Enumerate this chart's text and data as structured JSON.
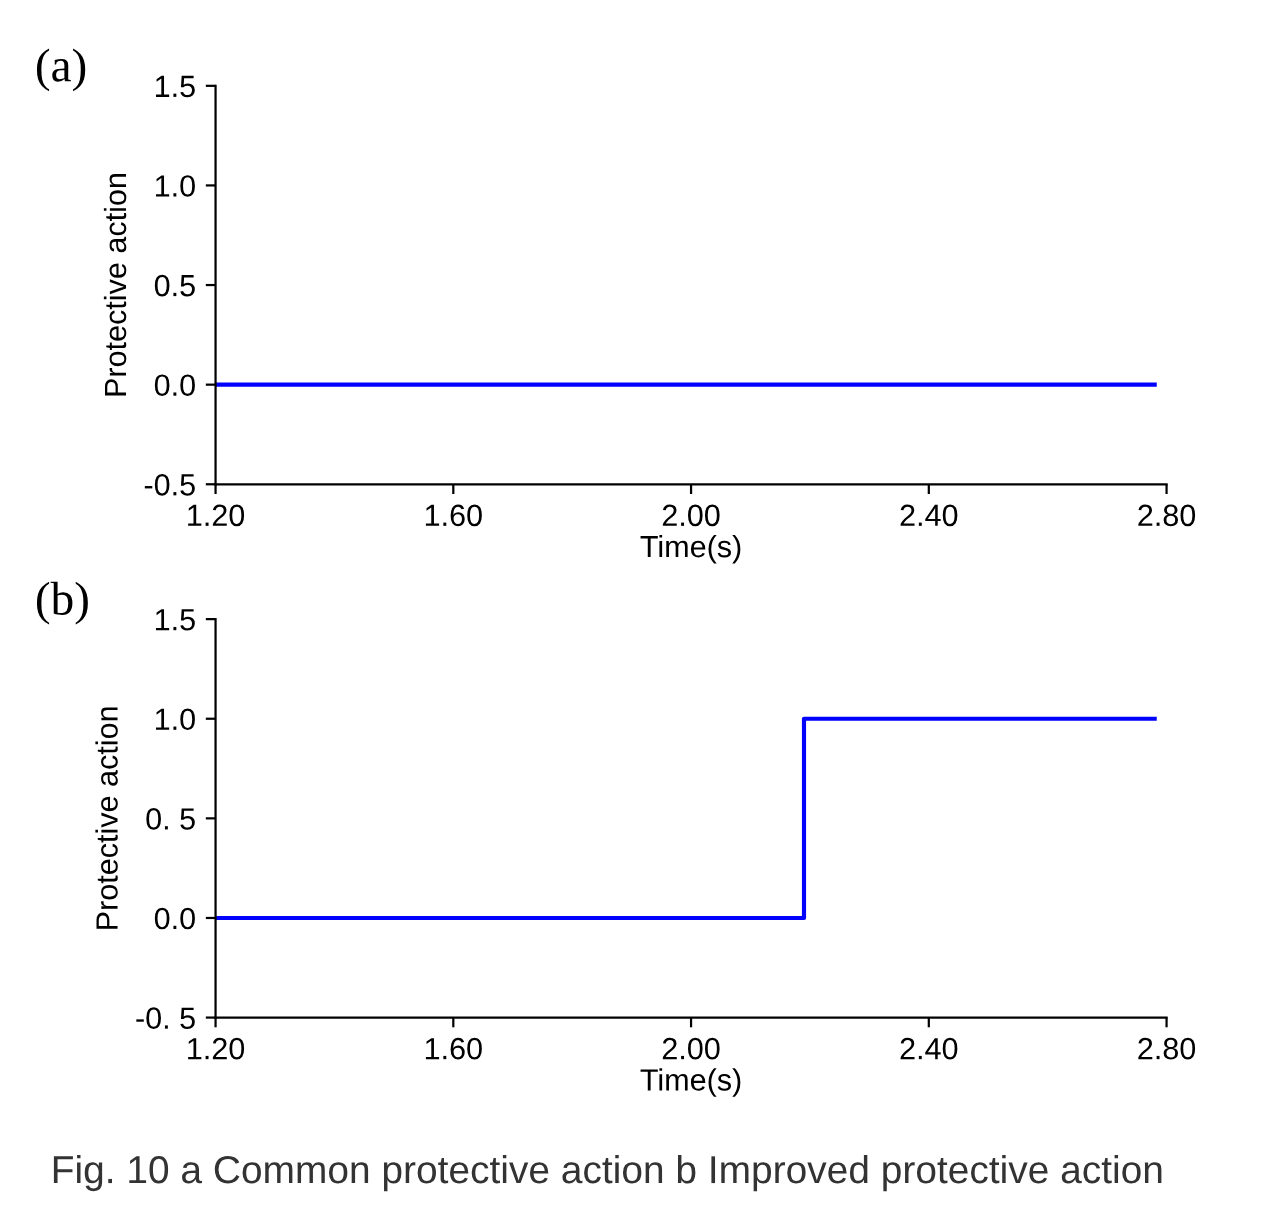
{
  "chart_data": [
    {
      "type": "line",
      "title": "(a)",
      "xlabel": "Time(s)",
      "ylabel": "Protective action",
      "x": [
        1.2,
        2.78
      ],
      "series": [
        {
          "color": "#0000ff",
          "values": [
            0,
            0
          ]
        }
      ],
      "xlim": [
        1.2,
        2.8
      ],
      "xticks": [
        {
          "value": 1.2,
          "label": "1.20"
        },
        {
          "value": 1.6,
          "label": "1.60"
        },
        {
          "value": 2.0,
          "label": "2.00"
        },
        {
          "value": 2.4,
          "label": "2.40"
        },
        {
          "value": 2.8,
          "label": "2.80"
        }
      ],
      "ylim": [
        -0.5,
        1.5
      ],
      "yticks": [
        {
          "value": -0.5,
          "label": "-0.5"
        },
        {
          "value": 0,
          "label": "0.0"
        },
        {
          "value": 0.5,
          "label": "0.5"
        },
        {
          "value": 1,
          "label": "1.0"
        },
        {
          "value": 1.5,
          "label": "1.5"
        }
      ]
    },
    {
      "type": "step",
      "title": "(b)",
      "xlabel": "Time(s)",
      "ylabel": "Protective action",
      "x": [
        1.2,
        2.19,
        2.78
      ],
      "series": [
        {
          "color": "#0000ff",
          "values": [
            0,
            1,
            1
          ]
        }
      ],
      "xlim": [
        1.2,
        2.8
      ],
      "xticks": [
        {
          "value": 1.2,
          "label": "1.20"
        },
        {
          "value": 1.6,
          "label": "1.60"
        },
        {
          "value": 2.0,
          "label": "2.00"
        },
        {
          "value": 2.4,
          "label": "2.40"
        },
        {
          "value": 2.8,
          "label": "2.80"
        }
      ],
      "ylim": [
        -0.5,
        1.5
      ],
      "yticks": [
        {
          "value": -0.5,
          "label": "-0. 5"
        },
        {
          "value": 0,
          "label": "0.0"
        },
        {
          "value": 0.5,
          "label": "0. 5"
        },
        {
          "value": 1,
          "label": "1.0"
        },
        {
          "value": 1.5,
          "label": "1.5"
        }
      ],
      "annotations": [
        "Fig. 10 a Common protective action b Improved protective action"
      ]
    }
  ]
}
